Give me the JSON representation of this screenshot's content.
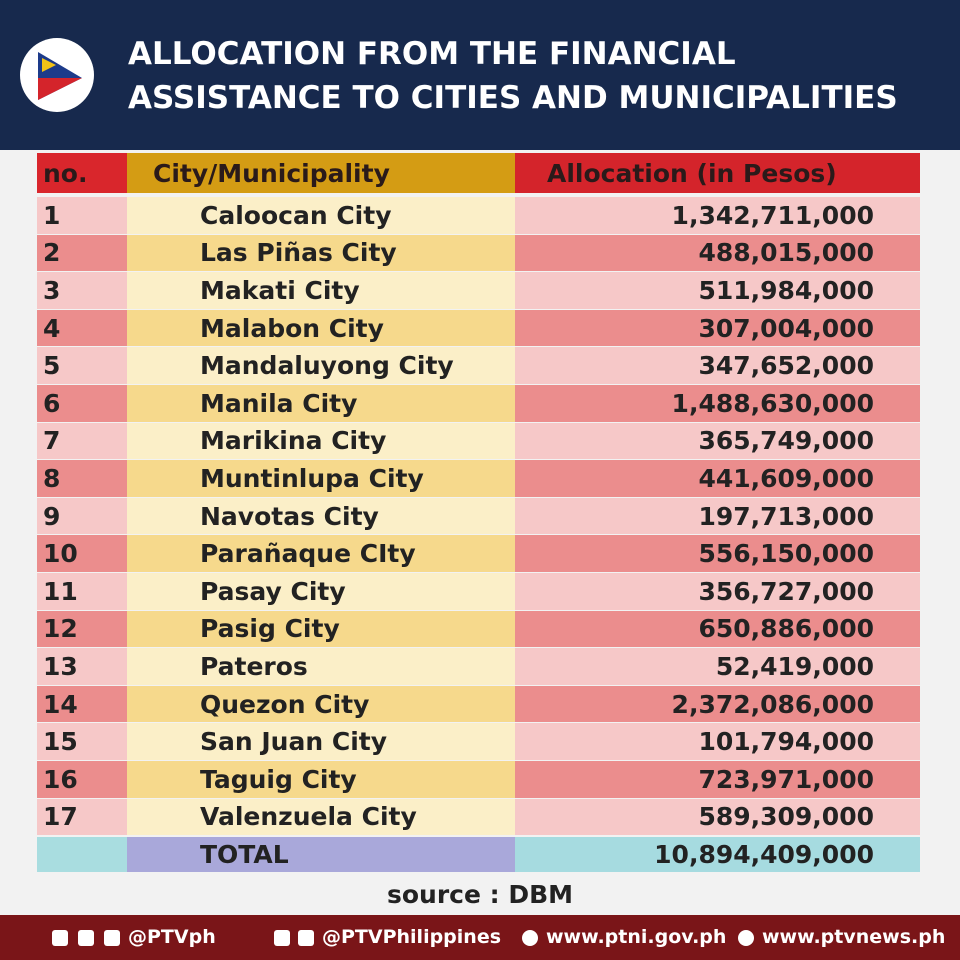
{
  "header": {
    "title_lines": [
      "ALLOCATION FROM THE FINANCIAL",
      "ASSISTANCE TO CITIES AND MUNICIPALITIES"
    ]
  },
  "table": {
    "columns": [
      "no.",
      "City/Municipality",
      "Allocation (in Pesos)"
    ],
    "rows": [
      [
        "1",
        "Caloocan City",
        "1,342,711,000"
      ],
      [
        "2",
        "Las Piñas City",
        "488,015,000"
      ],
      [
        "3",
        "Makati City",
        "511,984,000"
      ],
      [
        "4",
        "Malabon City",
        "307,004,000"
      ],
      [
        "5",
        "Mandaluyong City",
        "347,652,000"
      ],
      [
        "6",
        "Manila City",
        "1,488,630,000"
      ],
      [
        "7",
        "Marikina City",
        "365,749,000"
      ],
      [
        "8",
        "Muntinlupa City",
        "441,609,000"
      ],
      [
        "9",
        "Navotas City",
        "197,713,000"
      ],
      [
        "10",
        "Parañaque CIty",
        "556,150,000"
      ],
      [
        "11",
        "Pasay City",
        "356,727,000"
      ],
      [
        "12",
        "Pasig City",
        "650,886,000"
      ],
      [
        "13",
        "Pateros",
        "52,419,000"
      ],
      [
        "14",
        "Quezon City",
        "2,372,086,000"
      ],
      [
        "15",
        "San Juan City",
        "101,794,000"
      ],
      [
        "16",
        "Taguig City",
        "723,971,000"
      ],
      [
        "17",
        "Valenzuela City",
        "589,309,000"
      ]
    ],
    "total": {
      "label": "TOTAL",
      "value": "10,894,409,000"
    }
  },
  "source": "source : DBM",
  "footer": [
    "@PTVph",
    "@PTVPhilippines",
    "www.ptni.gov.ph",
    "www.ptvnews.ph"
  ]
}
